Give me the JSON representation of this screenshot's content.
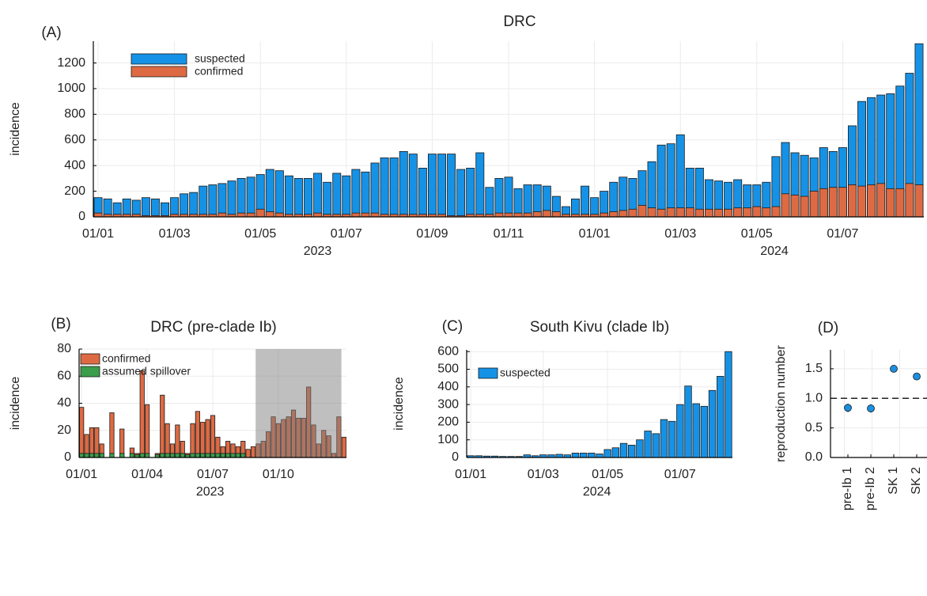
{
  "chart_data": [
    {
      "type": "bar",
      "panel_label": "(A)",
      "title": "DRC",
      "ylabel": "incidence",
      "categories": [
        "01/01",
        null,
        null,
        null,
        null,
        null,
        null,
        null,
        "01/03",
        null,
        null,
        null,
        null,
        null,
        null,
        null,
        null,
        "01/05",
        null,
        null,
        null,
        null,
        null,
        null,
        null,
        null,
        "01/07",
        null,
        null,
        null,
        null,
        null,
        null,
        null,
        null,
        "01/09",
        null,
        null,
        null,
        null,
        null,
        null,
        null,
        "01/11",
        null,
        null,
        null,
        null,
        null,
        null,
        null,
        null,
        "01/01",
        null,
        null,
        null,
        null,
        null,
        null,
        null,
        null,
        "01/03",
        null,
        null,
        null,
        null,
        null,
        null,
        null,
        "01/05",
        null,
        null,
        null,
        null,
        null,
        null,
        null,
        null,
        "01/07",
        null,
        null,
        null,
        null,
        null,
        null,
        null,
        null
      ],
      "x_sublabels": [
        "2023",
        "2024"
      ],
      "series": [
        {
          "name": "suspected",
          "color": "#1592e6",
          "values": [
            150,
            140,
            110,
            140,
            130,
            150,
            140,
            110,
            150,
            180,
            190,
            240,
            250,
            260,
            280,
            300,
            310,
            330,
            370,
            360,
            320,
            300,
            300,
            340,
            270,
            340,
            320,
            370,
            350,
            420,
            460,
            460,
            510,
            490,
            380,
            490,
            490,
            490,
            370,
            380,
            500,
            230,
            300,
            310,
            220,
            250,
            250,
            240,
            160,
            80,
            140,
            240,
            150,
            200,
            270,
            310,
            300,
            360,
            430,
            560,
            570,
            640,
            380,
            380,
            290,
            280,
            270,
            290,
            250,
            250,
            270,
            470,
            580,
            500,
            480,
            460,
            540,
            510,
            540,
            710,
            900,
            930,
            950,
            960,
            1020,
            1120,
            1350
          ]
        },
        {
          "name": "confirmed",
          "color": "#de6a43",
          "values": [
            30,
            20,
            20,
            20,
            20,
            10,
            10,
            10,
            20,
            20,
            20,
            20,
            20,
            30,
            20,
            30,
            30,
            60,
            40,
            30,
            20,
            20,
            20,
            30,
            20,
            20,
            20,
            30,
            30,
            30,
            20,
            20,
            20,
            20,
            20,
            20,
            20,
            10,
            10,
            20,
            20,
            20,
            30,
            30,
            30,
            30,
            40,
            50,
            40,
            20,
            20,
            20,
            20,
            30,
            40,
            50,
            60,
            90,
            70,
            60,
            70,
            70,
            70,
            60,
            60,
            60,
            60,
            70,
            70,
            80,
            70,
            80,
            180,
            170,
            160,
            200,
            220,
            230,
            230,
            250,
            240,
            250,
            260,
            220,
            220,
            260,
            250
          ]
        }
      ],
      "ylim": [
        0,
        1370
      ],
      "yticks": [
        0,
        200,
        400,
        600,
        800,
        1000,
        1200
      ],
      "grid": true,
      "legend": "top-left"
    },
    {
      "type": "bar",
      "panel_label": "(B)",
      "title": "DRC (pre-clade Ib)",
      "ylabel": "incidence",
      "categories": [
        "01/01",
        null,
        null,
        null,
        null,
        null,
        null,
        null,
        null,
        null,
        null,
        null,
        null,
        "01/04",
        null,
        null,
        null,
        null,
        null,
        null,
        null,
        null,
        null,
        null,
        null,
        null,
        "01/07",
        null,
        null,
        null,
        null,
        null,
        null,
        null,
        null,
        null,
        null,
        null,
        null,
        "01/10",
        null,
        null,
        null,
        null,
        null,
        null,
        null,
        null,
        null,
        null,
        null,
        null,
        null
      ],
      "x_sublabels": [
        "2023"
      ],
      "series": [
        {
          "name": "confirmed",
          "color": "#de6a43",
          "values": [
            37,
            17,
            22,
            22,
            10,
            0,
            33,
            0,
            21,
            0,
            7,
            3,
            64,
            39,
            0,
            3,
            46,
            25,
            10,
            24,
            12,
            3,
            25,
            34,
            26,
            28,
            31,
            15,
            8,
            12,
            10,
            8,
            12,
            6,
            8,
            10,
            12,
            19,
            30,
            25,
            28,
            30,
            35,
            29,
            29,
            52,
            24,
            10,
            20,
            16,
            3,
            30,
            15
          ]
        },
        {
          "name": "assumed spillover",
          "color": "#3a9e4a",
          "values": [
            3,
            3,
            3,
            3,
            3,
            0,
            3,
            0,
            3,
            0,
            3,
            2,
            3,
            3,
            0,
            2,
            3,
            3,
            3,
            3,
            3,
            2,
            3,
            3,
            3,
            3,
            3,
            3,
            3,
            3,
            3,
            3,
            3,
            0,
            0,
            0,
            0,
            0,
            0,
            0,
            0,
            0,
            0,
            0,
            0,
            0,
            0,
            0,
            0,
            0,
            0,
            0,
            0
          ]
        }
      ],
      "shaded": {
        "from": 35,
        "to": 52
      },
      "ylim": [
        0,
        80
      ],
      "yticks": [
        0,
        20,
        40,
        60,
        80
      ],
      "grid": true,
      "legend": "top-left"
    },
    {
      "type": "bar",
      "panel_label": "(C)",
      "title": "South Kivu (clade Ib)",
      "ylabel": "incidence",
      "categories": [
        "01/01",
        null,
        null,
        null,
        null,
        null,
        null,
        null,
        null,
        "01/03",
        null,
        null,
        null,
        null,
        null,
        null,
        null,
        "01/05",
        null,
        null,
        null,
        null,
        null,
        null,
        null,
        null,
        "01/07",
        null,
        null,
        null,
        null,
        null,
        null
      ],
      "x_sublabels": [
        "2024"
      ],
      "series": [
        {
          "name": "suspected",
          "color": "#1592e6",
          "values": [
            10,
            10,
            8,
            8,
            6,
            6,
            6,
            15,
            10,
            15,
            15,
            18,
            15,
            25,
            25,
            25,
            20,
            45,
            55,
            80,
            70,
            100,
            150,
            135,
            215,
            205,
            300,
            405,
            305,
            290,
            380,
            460,
            600
          ]
        }
      ],
      "ylim": [
        0,
        610
      ],
      "yticks": [
        0,
        100,
        200,
        300,
        400,
        500,
        600
      ],
      "grid": true,
      "legend": "top-left"
    },
    {
      "type": "errorbar",
      "panel_label": "(D)",
      "ylabel": "reproduction number",
      "categories": [
        "pre-Ib 1",
        "pre-Ib 2",
        "SK 1",
        "SK 2"
      ],
      "values": [
        0.84,
        0.83,
        1.5,
        1.37
      ],
      "errors": [
        0.07,
        0.07,
        0.03,
        0.03
      ],
      "color": "#1b8fe0",
      "reference_line": 1,
      "ylim": [
        0,
        1.82
      ],
      "yticks": [
        {
          "value": 0,
          "label": "0.0"
        },
        0.5,
        {
          "value": 1,
          "label": "1.0"
        },
        1.5
      ],
      "grid": true
    }
  ]
}
